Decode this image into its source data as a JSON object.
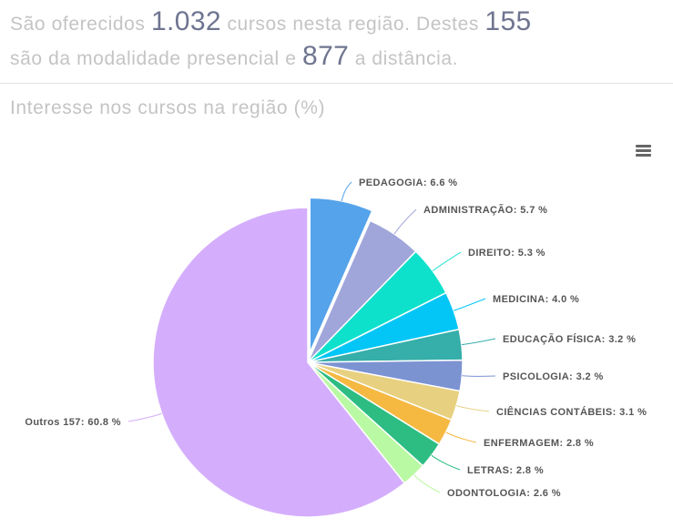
{
  "summary": {
    "text1": "São oferecidos",
    "total_courses": "1.032",
    "text2": "cursos nesta região. Destes",
    "presencial": "155",
    "text3": "são da modalidade presencial e",
    "distancia": "877",
    "text4": "a distância."
  },
  "chart_data": {
    "type": "pie",
    "title": "Interesse nos cursos na região (%)",
    "menu_icon": "hamburger-menu-icon",
    "slices": [
      {
        "name": "PEDAGOGIA",
        "label": "PEDAGOGIA: 6.6 %",
        "value": 6.6,
        "color": "#55a3ea",
        "exploded": true
      },
      {
        "name": "ADMINISTRAÇÃO",
        "label": "ADMINISTRAÇÃO: 5.7 %",
        "value": 5.7,
        "color": "#a0a6da"
      },
      {
        "name": "DIREITO",
        "label": "DIREITO: 5.3 %",
        "value": 5.3,
        "color": "#0de1cc"
      },
      {
        "name": "MEDICINA",
        "label": "MEDICINA: 4.0 %",
        "value": 4.0,
        "color": "#04c6f6"
      },
      {
        "name": "EDUCAÇÃO FÍSICA",
        "label": "EDUCAÇÃO FÍSICA: 3.2 %",
        "value": 3.2,
        "color": "#36aea9"
      },
      {
        "name": "PSICOLOGIA",
        "label": "PSICOLOGIA: 3.2 %",
        "value": 3.2,
        "color": "#7c93d2"
      },
      {
        "name": "CIÊNCIAS CONTÁBEIS",
        "label": "CIÊNCIAS CONTÁBEIS: 3.1 %",
        "value": 3.1,
        "color": "#e7d07f"
      },
      {
        "name": "ENFERMAGEM",
        "label": "ENFERMAGEM: 2.8 %",
        "value": 2.8,
        "color": "#f5b942"
      },
      {
        "name": "LETRAS",
        "label": "LETRAS: 2.8 %",
        "value": 2.8,
        "color": "#2dbd83"
      },
      {
        "name": "ODONTOLOGIA",
        "label": "ODONTOLOGIA: 2.6 %",
        "value": 2.6,
        "color": "#baf9a3"
      },
      {
        "name": "Outros 157",
        "label": "Outros 157: 60.8 %",
        "value": 60.8,
        "color": "#d4aefc"
      }
    ]
  }
}
